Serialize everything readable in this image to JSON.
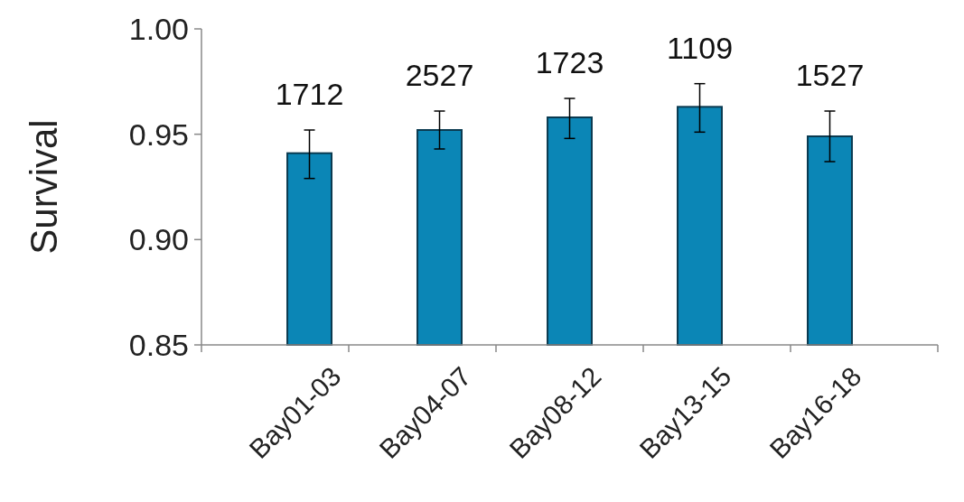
{
  "chart_data": {
    "type": "bar",
    "ylabel": "Survival",
    "categories": [
      "Bay01-03",
      "Bay04-07",
      "Bay08-12",
      "Bay13-15",
      "Bay16-18"
    ],
    "values": [
      0.941,
      0.952,
      0.958,
      0.963,
      0.949
    ],
    "errors": [
      [
        0.929,
        0.952
      ],
      [
        0.943,
        0.961
      ],
      [
        0.948,
        0.967
      ],
      [
        0.951,
        0.974
      ],
      [
        0.937,
        0.961
      ]
    ],
    "annotations": [
      "1712",
      "2527",
      "1723",
      "1109",
      "1527"
    ],
    "color": "#0b86b6",
    "ylim": [
      0.85,
      1.0
    ],
    "yticks": [
      {
        "value": 0.85,
        "label": "0.85"
      },
      {
        "value": 0.9,
        "label": "0.90"
      },
      {
        "value": 0.95,
        "label": "0.95"
      },
      {
        "value": 1.0,
        "label": "1.00"
      }
    ],
    "grid": false
  }
}
